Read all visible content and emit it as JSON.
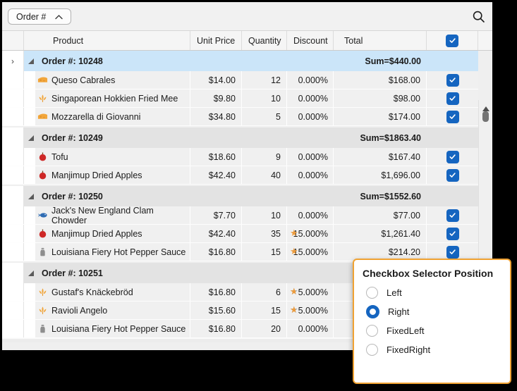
{
  "toolbar": {
    "group_chip_label": "Order #",
    "chevron_icon": "chevron-up-icon",
    "search_icon": "magnifier-icon"
  },
  "columns": [
    "Product",
    "Unit Price",
    "Quantity",
    "Discount",
    "Total"
  ],
  "header_checkbox_checked": true,
  "groups": [
    {
      "label": "Order #: 10248",
      "sum": "Sum=$440.00",
      "selected": true,
      "expanded": true,
      "rows": [
        {
          "icon": "cheese-icon",
          "product": "Queso Cabrales",
          "unit_price": "$14.00",
          "quantity": "12",
          "discount": "0.000%",
          "star": "none",
          "total": "$168.00",
          "checked": true
        },
        {
          "icon": "grain-icon",
          "product": "Singaporean Hokkien Fried Mee",
          "unit_price": "$9.80",
          "quantity": "10",
          "discount": "0.000%",
          "star": "none",
          "total": "$98.00",
          "checked": true
        },
        {
          "icon": "cheese-icon",
          "product": "Mozzarella di Giovanni",
          "unit_price": "$34.80",
          "quantity": "5",
          "discount": "0.000%",
          "star": "none",
          "total": "$174.00",
          "checked": true
        }
      ]
    },
    {
      "label": "Order #: 10249",
      "sum": "Sum=$1863.40",
      "selected": false,
      "expanded": true,
      "rows": [
        {
          "icon": "apple-icon",
          "product": "Tofu",
          "unit_price": "$18.60",
          "quantity": "9",
          "discount": "0.000%",
          "star": "none",
          "total": "$167.40",
          "checked": true
        },
        {
          "icon": "apple-icon",
          "product": "Manjimup Dried Apples",
          "unit_price": "$42.40",
          "quantity": "40",
          "discount": "0.000%",
          "star": "none",
          "total": "$1,696.00",
          "checked": true
        }
      ]
    },
    {
      "label": "Order #: 10250",
      "sum": "Sum=$1552.60",
      "selected": false,
      "expanded": true,
      "rows": [
        {
          "icon": "fish-icon",
          "product": "Jack's New England Clam Chowder",
          "unit_price": "$7.70",
          "quantity": "10",
          "discount": "0.000%",
          "star": "none",
          "total": "$77.00",
          "checked": true
        },
        {
          "icon": "apple-icon",
          "product": "Manjimup Dried Apples",
          "unit_price": "$42.40",
          "quantity": "35",
          "discount": "15.000%",
          "star": "full",
          "total": "$1,261.40",
          "checked": true
        },
        {
          "icon": "sauce-bottle-icon",
          "product": "Louisiana Fiery Hot Pepper Sauce",
          "unit_price": "$16.80",
          "quantity": "15",
          "discount": "15.000%",
          "star": "full",
          "total": "$214.20",
          "checked": true
        }
      ]
    },
    {
      "label": "Order #: 10251",
      "sum": "",
      "selected": false,
      "expanded": true,
      "rows": [
        {
          "icon": "grain-icon",
          "product": "Gustaf's Knäckebröd",
          "unit_price": "$16.80",
          "quantity": "6",
          "discount": "5.000%",
          "star": "half",
          "total": "",
          "checked": false
        },
        {
          "icon": "grain-icon",
          "product": "Ravioli Angelo",
          "unit_price": "$15.60",
          "quantity": "15",
          "discount": "5.000%",
          "star": "half",
          "total": "",
          "checked": false
        },
        {
          "icon": "sauce-bottle-icon",
          "product": "Louisiana Fiery Hot Pepper Sauce",
          "unit_price": "$16.80",
          "quantity": "20",
          "discount": "0.000%",
          "star": "none",
          "total": "",
          "checked": false
        }
      ]
    }
  ],
  "popup": {
    "title": "Checkbox Selector Position",
    "options": [
      {
        "label": "Left",
        "selected": false
      },
      {
        "label": "Right",
        "selected": true
      },
      {
        "label": "FixedLeft",
        "selected": false
      },
      {
        "label": "FixedRight",
        "selected": false
      }
    ]
  },
  "colors": {
    "accent_blue": "#1565C0",
    "selected_row": "#CBE5F9",
    "popup_border": "#F0A232",
    "star_orange": "#ED9C3D",
    "group_row_bg": "#E3E3E3",
    "data_row_bg": "#F0F0F0"
  }
}
